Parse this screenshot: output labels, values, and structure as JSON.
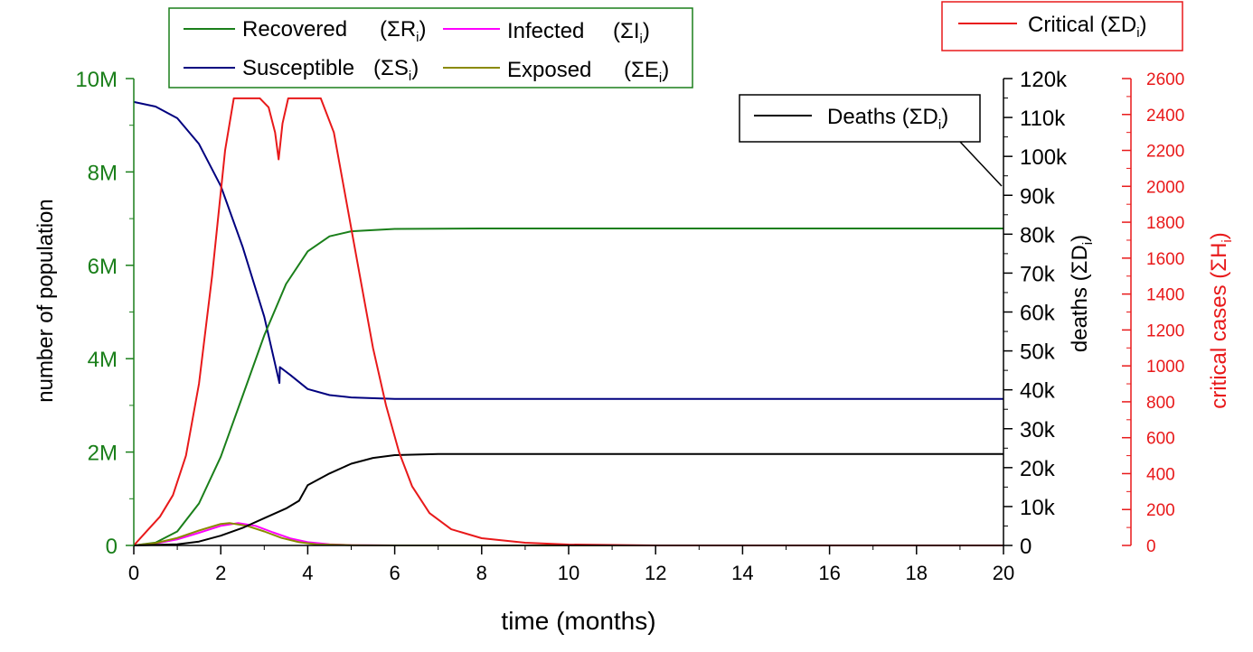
{
  "chart_data": {
    "type": "line",
    "x_axis": {
      "label": "time (months)",
      "range": [
        0,
        20
      ],
      "ticks": [
        "0",
        "2",
        "4",
        "6",
        "8",
        "10",
        "12",
        "14",
        "16",
        "18",
        "20"
      ]
    },
    "y_axes": {
      "left": {
        "label": "number of population",
        "range": [
          0,
          10000000
        ],
        "ticks": [
          "0",
          "2M",
          "4M",
          "6M",
          "8M",
          "10M"
        ],
        "color": "#1a7f1a"
      },
      "right1": {
        "label_main": "deaths (ΣD",
        "label_sub": "i",
        "label_close": ")",
        "range": [
          0,
          120000
        ],
        "ticks": [
          "0",
          "10k",
          "20k",
          "30k",
          "40k",
          "50k",
          "60k",
          "70k",
          "80k",
          "90k",
          "100k",
          "110k",
          "120k"
        ],
        "color": "#000000"
      },
      "right2": {
        "label_main": "critical cases (ΣH",
        "label_sub": "i",
        "label_close": ")",
        "range": [
          0,
          2600
        ],
        "ticks": [
          "0",
          "200",
          "400",
          "600",
          "800",
          "1000",
          "1200",
          "1400",
          "1600",
          "1800",
          "2000",
          "2200",
          "2400",
          "2600"
        ],
        "color": "#e8191a"
      }
    },
    "legend_main": [
      {
        "key": "recovered",
        "label": "Recovered",
        "sym": "(ΣR",
        "sub": "i",
        "close": ")",
        "color": "#1a7f1a"
      },
      {
        "key": "infected",
        "label": "Infected",
        "sym": "(ΣI",
        "sub": "i",
        "close": ")",
        "color": "#ff00ff"
      },
      {
        "key": "susceptible",
        "label": "Susceptible",
        "sym": "(ΣS",
        "sub": "i",
        "close": ")",
        "color": "#00007f"
      },
      {
        "key": "exposed",
        "label": "Exposed",
        "sym": "(ΣE",
        "sub": "i",
        "close": ")",
        "color": "#8a8a00"
      }
    ],
    "legend_critical": {
      "label": "Critical",
      "sym": "(ΣD",
      "sub": "i",
      "close": ")",
      "color": "#e8191a"
    },
    "legend_deaths": {
      "label": "Deaths",
      "sym": "(ΣD",
      "sub": "i",
      "close": ")",
      "color": "#000000"
    },
    "series": [
      {
        "name": "Susceptible",
        "axis": "left",
        "color": "#00007f",
        "points": [
          [
            0,
            9500000
          ],
          [
            0.5,
            9400000
          ],
          [
            1,
            9150000
          ],
          [
            1.5,
            8600000
          ],
          [
            2,
            7700000
          ],
          [
            2.5,
            6400000
          ],
          [
            3,
            4900000
          ],
          [
            3.35,
            3480000
          ],
          [
            3.36,
            3820000
          ],
          [
            3.6,
            3650000
          ],
          [
            4,
            3350000
          ],
          [
            4.5,
            3220000
          ],
          [
            5,
            3170000
          ],
          [
            6,
            3140000
          ],
          [
            8,
            3140000
          ],
          [
            20,
            3140000
          ]
        ]
      },
      {
        "name": "Recovered",
        "axis": "left",
        "color": "#1a7f1a",
        "points": [
          [
            0,
            0
          ],
          [
            0.5,
            60000
          ],
          [
            1,
            300000
          ],
          [
            1.5,
            900000
          ],
          [
            2,
            1900000
          ],
          [
            2.5,
            3200000
          ],
          [
            3,
            4500000
          ],
          [
            3.5,
            5600000
          ],
          [
            4,
            6300000
          ],
          [
            4.5,
            6620000
          ],
          [
            5,
            6730000
          ],
          [
            6,
            6780000
          ],
          [
            8,
            6790000
          ],
          [
            20,
            6790000
          ]
        ]
      },
      {
        "name": "Infected",
        "axis": "left",
        "color": "#ff00ff",
        "points": [
          [
            0,
            0
          ],
          [
            0.5,
            40000
          ],
          [
            1,
            130000
          ],
          [
            1.5,
            270000
          ],
          [
            2,
            420000
          ],
          [
            2.4,
            480000
          ],
          [
            2.8,
            420000
          ],
          [
            3.2,
            280000
          ],
          [
            3.6,
            150000
          ],
          [
            4,
            70000
          ],
          [
            4.5,
            25000
          ],
          [
            5,
            8000
          ],
          [
            6,
            0
          ],
          [
            20,
            0
          ]
        ]
      },
      {
        "name": "Exposed",
        "axis": "left",
        "color": "#8a8a00",
        "points": [
          [
            0,
            0
          ],
          [
            0.5,
            50000
          ],
          [
            1,
            160000
          ],
          [
            1.5,
            320000
          ],
          [
            2,
            460000
          ],
          [
            2.2,
            480000
          ],
          [
            2.6,
            420000
          ],
          [
            3,
            300000
          ],
          [
            3.4,
            160000
          ],
          [
            3.8,
            70000
          ],
          [
            4.2,
            25000
          ],
          [
            5,
            5000
          ],
          [
            6,
            0
          ],
          [
            20,
            0
          ]
        ]
      },
      {
        "name": "Deaths",
        "axis": "right1",
        "color": "#000000",
        "points": [
          [
            0,
            0
          ],
          [
            1,
            300
          ],
          [
            1.5,
            1000
          ],
          [
            2,
            2500
          ],
          [
            2.5,
            4500
          ],
          [
            3,
            7000
          ],
          [
            3.5,
            9500
          ],
          [
            3.8,
            11500
          ],
          [
            4,
            15500
          ],
          [
            4.5,
            18500
          ],
          [
            5,
            21000
          ],
          [
            5.5,
            22500
          ],
          [
            6,
            23200
          ],
          [
            7,
            23500
          ],
          [
            20,
            23500
          ]
        ]
      },
      {
        "name": "Critical",
        "axis": "right2",
        "color": "#e8191a",
        "points": [
          [
            0,
            0
          ],
          [
            0.3,
            80
          ],
          [
            0.6,
            160
          ],
          [
            0.9,
            280
          ],
          [
            1.2,
            500
          ],
          [
            1.5,
            900
          ],
          [
            1.8,
            1500
          ],
          [
            2.1,
            2200
          ],
          [
            2.3,
            2490
          ],
          [
            2.9,
            2490
          ],
          [
            3.1,
            2440
          ],
          [
            3.25,
            2300
          ],
          [
            3.33,
            2150
          ],
          [
            3.42,
            2350
          ],
          [
            3.55,
            2490
          ],
          [
            4.3,
            2490
          ],
          [
            4.6,
            2300
          ],
          [
            4.9,
            1900
          ],
          [
            5.2,
            1500
          ],
          [
            5.5,
            1100
          ],
          [
            5.8,
            780
          ],
          [
            6.1,
            520
          ],
          [
            6.4,
            330
          ],
          [
            6.8,
            180
          ],
          [
            7.3,
            90
          ],
          [
            8,
            40
          ],
          [
            9,
            15
          ],
          [
            10,
            5
          ],
          [
            12,
            0
          ],
          [
            20,
            0
          ]
        ]
      }
    ]
  }
}
